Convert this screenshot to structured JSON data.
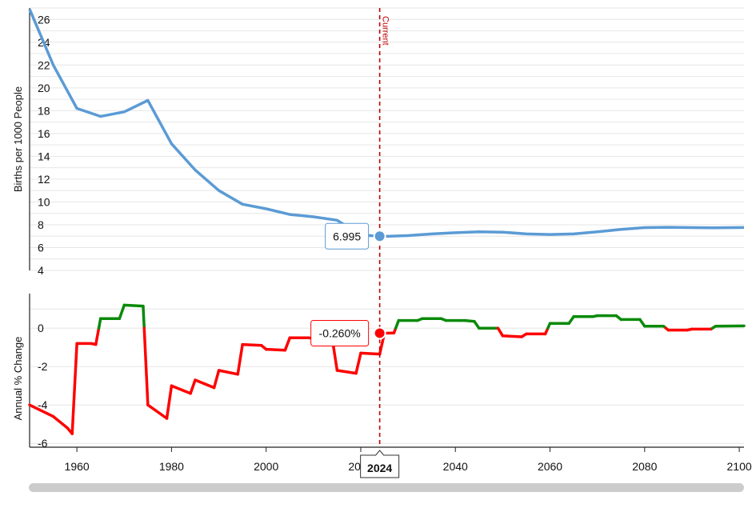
{
  "colors": {
    "rate_line": "#5b9bd5",
    "change_positive": "#0a8a0a",
    "change_negative": "#ff0000",
    "current_marker": "#c00000",
    "scrollbar": "#cccccc"
  },
  "labels": {
    "current": "Current",
    "year_badge": "2024",
    "rate_tooltip": "6.995",
    "change_tooltip": "-0.260%"
  },
  "chart_data": [
    {
      "type": "line",
      "ylabel": "Births per 1000 People",
      "xlim": [
        1950,
        2101
      ],
      "ylim": [
        4,
        27
      ],
      "yticks": [
        4,
        6,
        8,
        10,
        12,
        14,
        16,
        18,
        20,
        22,
        24,
        26
      ],
      "grid": true,
      "series": [
        {
          "x": [
            1950,
            1955,
            1960,
            1965,
            1970,
            1975,
            1980,
            1985,
            1990,
            1995,
            2000,
            2005,
            2010,
            2015,
            2020,
            2024,
            2025,
            2030,
            2035,
            2040,
            2045,
            2050,
            2055,
            2060,
            2065,
            2070,
            2075,
            2080,
            2085,
            2090,
            2095,
            2101
          ],
          "y": [
            26.9,
            22.0,
            18.2,
            17.5,
            17.9,
            18.9,
            15.1,
            12.8,
            11.0,
            9.8,
            9.4,
            8.9,
            8.7,
            8.4,
            7.1,
            6.995,
            6.98,
            7.05,
            7.2,
            7.3,
            7.38,
            7.35,
            7.2,
            7.15,
            7.2,
            7.38,
            7.6,
            7.75,
            7.78,
            7.75,
            7.73,
            7.76
          ]
        }
      ]
    },
    {
      "type": "line",
      "ylabel": "Annual % Change",
      "xlim": [
        1950,
        2101
      ],
      "ylim": [
        -6.2,
        1.8
      ],
      "yticks": [
        -6,
        -4,
        -2,
        0
      ],
      "grid": true,
      "series": [
        {
          "x": [
            1950,
            1955,
            1957,
            1958,
            1959,
            1960,
            1963,
            1964,
            1965,
            1968,
            1969,
            1970,
            1974,
            1975,
            1979,
            1980,
            1984,
            1985,
            1989,
            1990,
            1994,
            1995,
            1999,
            2000,
            2004,
            2005,
            2009,
            2010,
            2014,
            2015,
            2019,
            2020,
            2024,
            2025,
            2027,
            2028,
            2032,
            2033,
            2037,
            2038,
            2041,
            2042,
            2044,
            2045,
            2049,
            2050,
            2054,
            2055,
            2059,
            2060,
            2064,
            2065,
            2069,
            2070,
            2074,
            2075,
            2079,
            2080,
            2084,
            2085,
            2089,
            2090,
            2094,
            2095,
            2101
          ],
          "y": [
            -4.0,
            -4.6,
            -5.0,
            -5.2,
            -5.5,
            -0.8,
            -0.8,
            -0.85,
            0.5,
            0.5,
            0.5,
            1.2,
            1.15,
            -4.0,
            -4.7,
            -3.0,
            -3.4,
            -2.7,
            -3.1,
            -2.2,
            -2.4,
            -0.85,
            -0.9,
            -1.1,
            -1.15,
            -0.5,
            -0.5,
            -0.55,
            -0.6,
            -2.2,
            -2.35,
            -1.3,
            -1.35,
            -0.26,
            -0.25,
            0.4,
            0.4,
            0.5,
            0.5,
            0.4,
            0.4,
            0.4,
            0.35,
            0.0,
            0.0,
            -0.4,
            -0.45,
            -0.3,
            -0.3,
            0.25,
            0.25,
            0.6,
            0.6,
            0.65,
            0.65,
            0.45,
            0.45,
            0.1,
            0.1,
            -0.1,
            -0.1,
            -0.05,
            -0.05,
            0.1,
            0.12
          ]
        }
      ]
    }
  ],
  "x_axis": {
    "ticks": [
      1960,
      1980,
      2000,
      2020,
      2040,
      2060,
      2080,
      2100
    ],
    "current_year": 2024
  }
}
